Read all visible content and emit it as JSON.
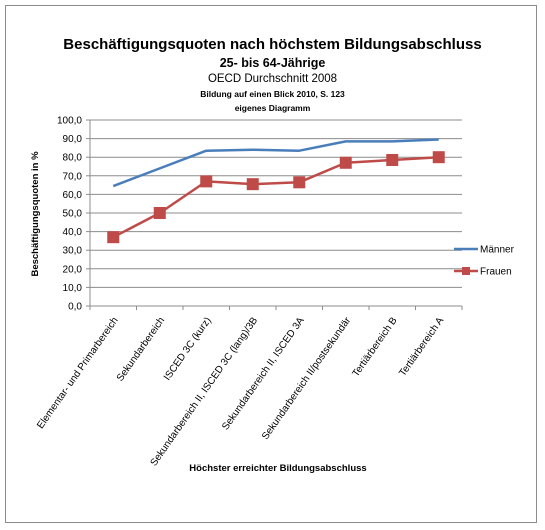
{
  "chart_data": {
    "type": "line",
    "title": "Beschäftigungsquoten nach höchstem Bildungsabschluss",
    "subtitle": "25- bis 64-Jährige",
    "subtitle2": "OECD  Durchschnitt 2008",
    "source": "Bildung auf einen Blick 2010, S. 123",
    "note": "eigenes Diagramm",
    "xlabel": "Höchster erreichter Bildungsabschluss",
    "ylabel": "Beschäftigungsquoten in %",
    "ylim": [
      0,
      100
    ],
    "yticks": [
      "0,0",
      "10,0",
      "20,0",
      "30,0",
      "40,0",
      "50,0",
      "60,0",
      "70,0",
      "80,0",
      "90,0",
      "100,0"
    ],
    "grid": true,
    "legend_position": "right",
    "categories": [
      "Elementar- und Primarbereich",
      "Sekundarbereich",
      "ISCED 3C (kurz)",
      "Sekundarbereich II, ISCED 3C (lang)/3B",
      "Sekundarbereich II, ISCED 3A",
      "Sekundarbereich II/postsekundär",
      "Tertiärbereich B",
      "Tertiärbereich A"
    ],
    "series": [
      {
        "name": "Männer",
        "color": "#4a7ebb",
        "marker": "none",
        "values": [
          64.5,
          74,
          83.5,
          84,
          83.5,
          88.5,
          88.5,
          89.5
        ]
      },
      {
        "name": "Frauen",
        "color": "#be4b48",
        "marker": "square",
        "values": [
          37,
          50,
          67,
          65.5,
          66.5,
          77,
          78.5,
          80
        ]
      }
    ]
  }
}
